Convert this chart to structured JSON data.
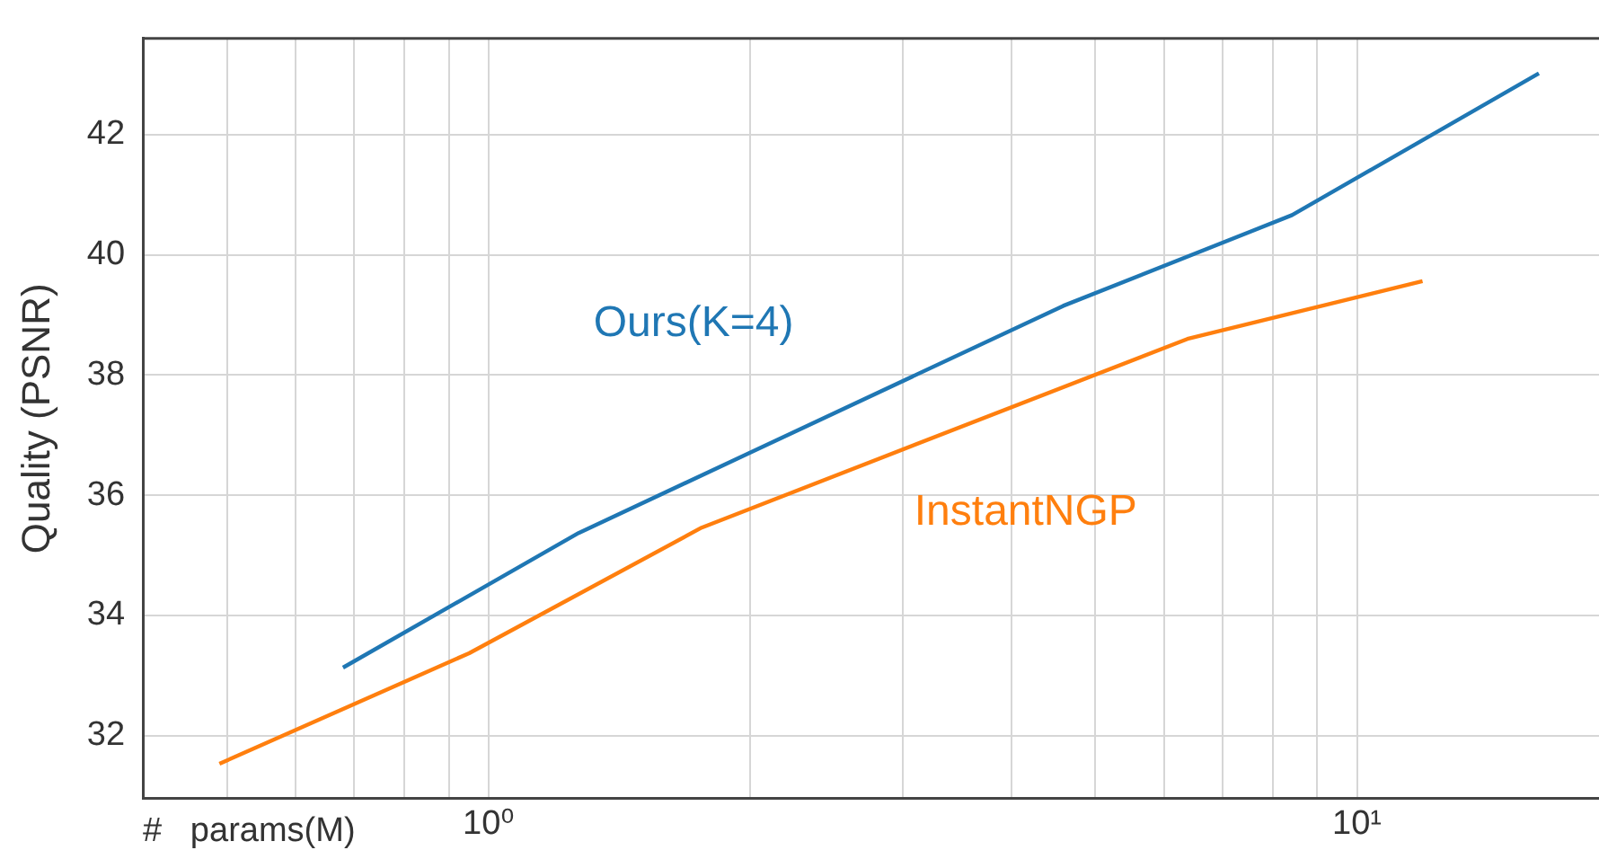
{
  "chart_data": {
    "type": "line",
    "xlabel": "#   params(M)",
    "ylabel": "Quality (PSNR)",
    "log": "x",
    "grid": true,
    "legend": false,
    "marker": "none",
    "line_style": "solid",
    "xlim": [
      0.4,
      19
    ],
    "ylim": [
      30.95,
      43.6
    ],
    "xticks": [
      {
        "value": 0.5,
        "label": null
      },
      {
        "value": 0.6,
        "label": null
      },
      {
        "value": 0.7,
        "label": null
      },
      {
        "value": 0.8,
        "label": null
      },
      {
        "value": 0.9,
        "label": null
      },
      {
        "value": 1,
        "label": "10⁰"
      },
      {
        "value": 2,
        "label": null
      },
      {
        "value": 3,
        "label": null
      },
      {
        "value": 4,
        "label": null
      },
      {
        "value": 5,
        "label": null
      },
      {
        "value": 6,
        "label": null
      },
      {
        "value": 7,
        "label": null
      },
      {
        "value": 8,
        "label": null
      },
      {
        "value": 9,
        "label": null
      },
      {
        "value": 10,
        "label": "10¹"
      }
    ],
    "yticks": [
      32,
      34,
      36,
      38,
      40,
      42
    ],
    "series": [
      {
        "name": "Ours(K=4)",
        "color": "#1f77b4",
        "x": [
          0.68,
          1.27,
          4.59,
          8.42,
          16.2
        ],
        "values": [
          33.13,
          35.37,
          39.15,
          40.66,
          43.02
        ]
      },
      {
        "name": "InstantNGP",
        "color": "#ff7f0e",
        "x": [
          0.49,
          0.95,
          1.76,
          6.38,
          11.9
        ],
        "values": [
          31.53,
          33.37,
          35.46,
          38.6,
          39.56
        ]
      }
    ]
  }
}
